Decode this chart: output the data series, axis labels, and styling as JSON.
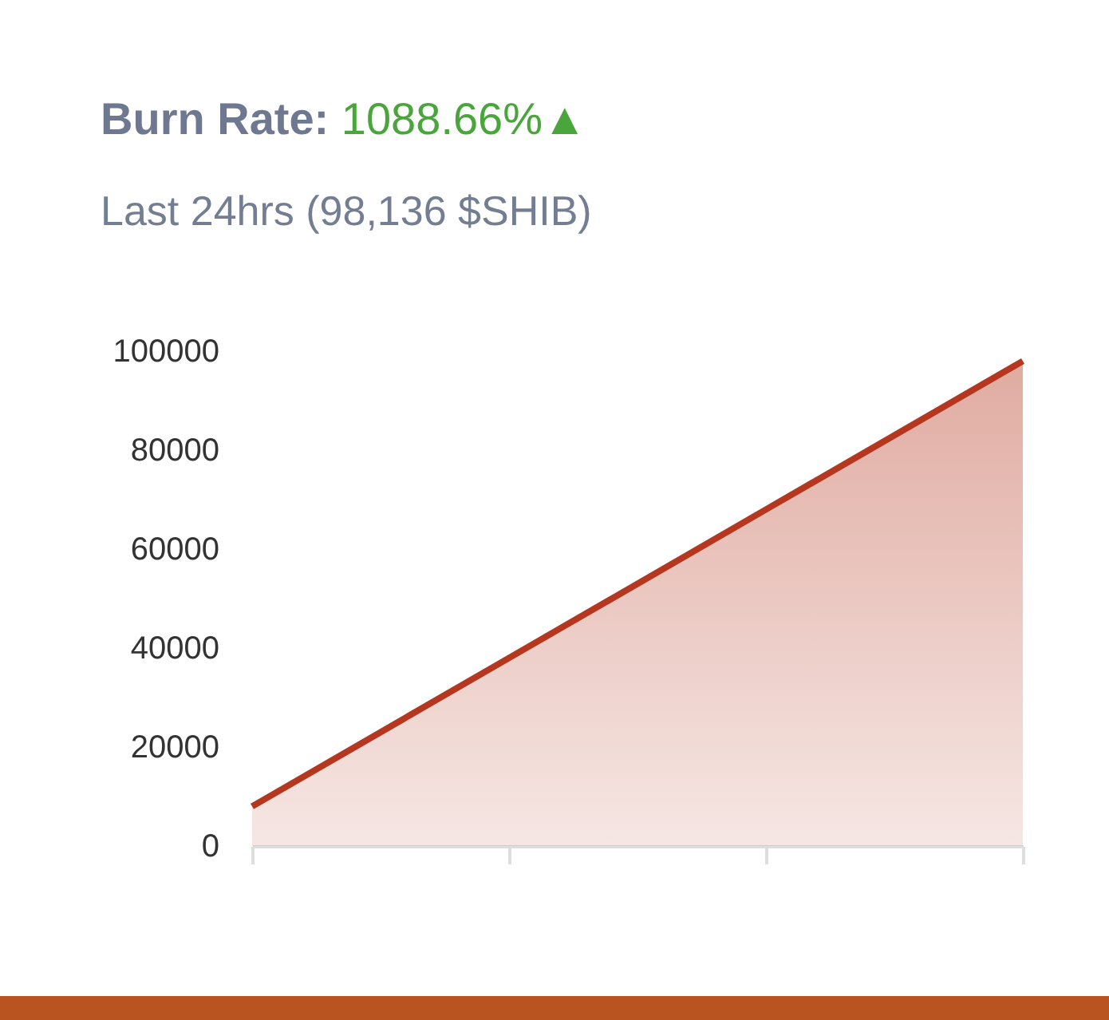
{
  "chart_data": {
    "type": "area",
    "title": "Burn Rate: 1088.66%▲",
    "subtitle": "Last 24hrs (98,136 $SHIB)",
    "categories": [
      null,
      null,
      null,
      null
    ],
    "values": [
      8000,
      38000,
      68000,
      98000
    ],
    "color": "#b5371f",
    "ylim": [
      0,
      100000
    ],
    "yticks": [
      0,
      20000,
      40000,
      60000,
      80000,
      100000
    ]
  }
}
